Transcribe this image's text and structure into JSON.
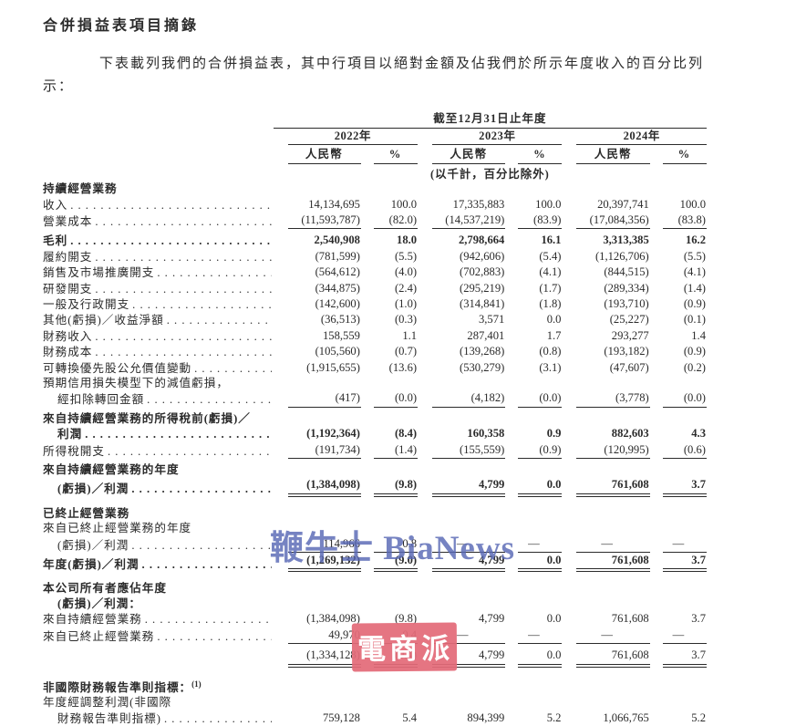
{
  "document": {
    "title": "合併損益表項目摘錄",
    "intro": "下表載列我們的合併損益表，其中行項目以絕對金額及佔我們於所示年度收入的百分比列示："
  },
  "table": {
    "period_header": "截至12月31日止年度",
    "years": [
      "2022年",
      "2023年",
      "2024年"
    ],
    "currency_label": "人民幣",
    "percent_label": "%",
    "unit_note": "(以千計，百分比除外)",
    "rows": [
      {
        "label": "持續經營業務",
        "bold": true
      },
      {
        "label": "收入",
        "dots": true,
        "values": [
          "14,134,695",
          "100.0",
          "17,335,883",
          "100.0",
          "20,397,741",
          "100.0"
        ]
      },
      {
        "label": "營業成本",
        "dots": true,
        "rule": "single",
        "values": [
          "(11,593,787)",
          "(82.0)",
          "(14,537,219)",
          "(83.9)",
          "(17,084,356)",
          "(83.8)"
        ]
      },
      {
        "label": "毛利",
        "bold": true,
        "vbold": true,
        "dots": true,
        "sp": 1,
        "values": [
          "2,540,908",
          "18.0",
          "2,798,664",
          "16.1",
          "3,313,385",
          "16.2"
        ]
      },
      {
        "label": "履約開支",
        "dots": true,
        "values": [
          "(781,599)",
          "(5.5)",
          "(942,606)",
          "(5.4)",
          "(1,126,706)",
          "(5.5)"
        ]
      },
      {
        "label": "銷售及市場推廣開支",
        "dots": true,
        "values": [
          "(564,612)",
          "(4.0)",
          "(702,883)",
          "(4.1)",
          "(844,515)",
          "(4.1)"
        ]
      },
      {
        "label": "研發開支",
        "dots": true,
        "values": [
          "(344,875)",
          "(2.4)",
          "(295,219)",
          "(1.7)",
          "(289,334)",
          "(1.4)"
        ]
      },
      {
        "label": "一般及行政開支",
        "dots": true,
        "values": [
          "(142,600)",
          "(1.0)",
          "(314,841)",
          "(1.8)",
          "(193,710)",
          "(0.9)"
        ]
      },
      {
        "label": "其他(虧損)／收益淨額",
        "dots": true,
        "values": [
          "(36,513)",
          "(0.3)",
          "3,571",
          "0.0",
          "(25,227)",
          "(0.1)"
        ]
      },
      {
        "label": "財務收入",
        "dots": true,
        "values": [
          "158,559",
          "1.1",
          "287,401",
          "1.7",
          "293,277",
          "1.4"
        ]
      },
      {
        "label": "財務成本",
        "dots": true,
        "values": [
          "(105,560)",
          "(0.7)",
          "(139,268)",
          "(0.8)",
          "(193,182)",
          "(0.9)"
        ]
      },
      {
        "label": "可轉換優先股公允價值變動",
        "dots": true,
        "values": [
          "(1,915,655)",
          "(13.6)",
          "(530,279)",
          "(3.1)",
          "(47,607)",
          "(0.2)"
        ]
      },
      {
        "label": "預期信用損失模型下的減值虧損，"
      },
      {
        "label": "經扣除轉回金額",
        "indent": 1,
        "dots": true,
        "rule": "single",
        "values": [
          "(417)",
          "(0.0)",
          "(4,182)",
          "(0.0)",
          "(3,778)",
          "(0.0)"
        ]
      },
      {
        "label": "來自持續經營業務的所得稅前(虧損)／",
        "bold": true,
        "sp": 1
      },
      {
        "label": "利潤",
        "indent": 1,
        "bold": true,
        "vbold": true,
        "dots": true,
        "values": [
          "(1,192,364)",
          "(8.4)",
          "160,358",
          "0.9",
          "882,603",
          "4.3"
        ]
      },
      {
        "label": "所得稅開支",
        "dots": true,
        "rule": "single",
        "values": [
          "(191,734)",
          "(1.4)",
          "(155,559)",
          "(0.9)",
          "(120,995)",
          "(0.6)"
        ]
      },
      {
        "label": "來自持續經營業務的年度",
        "bold": true,
        "sp": 1
      },
      {
        "label": "(虧損)／利潤",
        "indent": 1,
        "bold": true,
        "vbold": true,
        "dots": true,
        "rule": "double",
        "values": [
          "(1,384,098)",
          "(9.8)",
          "4,799",
          "0.0",
          "761,608",
          "3.7"
        ]
      },
      {
        "label": "已終止經營業務",
        "bold": true,
        "sp": 2
      },
      {
        "label": "來自已終止經營業務的年度"
      },
      {
        "label": "(虧損)／利潤",
        "indent": 1,
        "dots": true,
        "rule": "single",
        "values": [
          "114,966",
          "0.8",
          "—",
          "—",
          "—",
          "—"
        ]
      },
      {
        "label": "年度(虧損)／利潤",
        "bold": true,
        "vbold": true,
        "dots": true,
        "rule": "double",
        "values": [
          "(1,269,132)",
          "(9.0)",
          "4,799",
          "0.0",
          "761,608",
          "3.7"
        ]
      },
      {
        "label": "本公司所有者應佔年度",
        "bold": true,
        "sp": 2
      },
      {
        "label": "(虧損)／利潤：",
        "indent": 1,
        "bold": true
      },
      {
        "label": "來自持續經營業務",
        "dots": true,
        "values": [
          "(1,384,098)",
          "(9.8)",
          "4,799",
          "0.0",
          "761,608",
          "3.7"
        ]
      },
      {
        "label": "來自已終止經營業務",
        "dots": true,
        "rule": "single",
        "values": [
          "49,970",
          "0.4",
          "—",
          "—",
          "—",
          "—"
        ]
      },
      {
        "label": "",
        "sp": 1,
        "rule": "double",
        "values": [
          "(1,334,128)",
          "(9.4)",
          "4,799",
          "0.0",
          "761,608",
          "3.7"
        ]
      },
      {
        "label": "非國際財務報告準則指標：",
        "sup": "(1)",
        "bold": true,
        "sp": 2
      },
      {
        "label": "年度經調整利潤(非國際"
      },
      {
        "label": "財務報告準則指標)",
        "indent": 1,
        "dots": true,
        "values": [
          "759,128",
          "5.4",
          "894,399",
          "5.2",
          "1,066,765",
          "5.2"
        ]
      }
    ]
  },
  "watermarks": {
    "bianews": "鞭牛士 BiaNews",
    "stamp": "電商派"
  },
  "colors": {
    "text": "#2b2b2b",
    "watermark_blue": "#5868b4",
    "stamp_red": "#e36b79"
  }
}
